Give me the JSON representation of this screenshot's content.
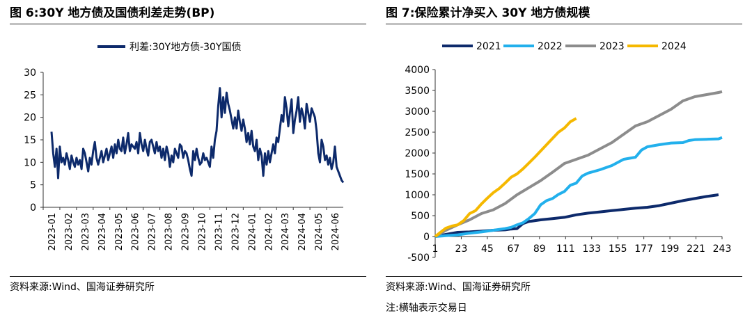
{
  "colors": {
    "navy": "#0d2a6b",
    "light_blue": "#22b0ec",
    "gray": "#8c8c8c",
    "yellow": "#f5b800",
    "rule": "#222222"
  },
  "left": {
    "title": "图 6:30Y 地方债及国债利差走势(BP)",
    "source": "资料来源:Wind、国海证券研究所"
  },
  "right": {
    "title": "图 7:保险累计净买入 30Y 地方债规模",
    "source": "资料来源:Wind、国海证券研究所",
    "note": "注:横轴表示交易日"
  },
  "chart_data": [
    {
      "type": "line",
      "title": "",
      "legend_position": "top-center",
      "categories": [
        "2023-01",
        "2023-02",
        "2023-03",
        "2023-04",
        "2023-05",
        "2023-06",
        "2023-07",
        "2023-08",
        "2023-09",
        "2023-10",
        "2023-11",
        "2023-12",
        "2024-01",
        "2024-02",
        "2024-03",
        "2024-04",
        "2024-05",
        "2024-06"
      ],
      "ylim": [
        0,
        30
      ],
      "yticks": [
        0,
        5,
        10,
        15,
        20,
        25,
        30
      ],
      "grid": false,
      "series": [
        {
          "name": "利差:30Y地方债-30Y国债",
          "color": "#0d2a6b",
          "x": [
            0,
            0.1,
            0.2,
            0.3,
            0.4,
            0.5,
            0.6,
            0.7,
            0.8,
            0.9,
            1.0,
            1.1,
            1.2,
            1.3,
            1.4,
            1.5,
            1.6,
            1.7,
            1.8,
            1.9,
            2.0,
            2.1,
            2.2,
            2.3,
            2.4,
            2.5,
            2.6,
            2.7,
            2.8,
            2.9,
            3.0,
            3.1,
            3.2,
            3.3,
            3.4,
            3.5,
            3.6,
            3.7,
            3.8,
            3.9,
            4.0,
            4.1,
            4.2,
            4.3,
            4.4,
            4.5,
            4.6,
            4.7,
            4.8,
            4.9,
            5.0,
            5.1,
            5.2,
            5.3,
            5.4,
            5.5,
            5.6,
            5.7,
            5.8,
            5.9,
            6.0,
            6.1,
            6.2,
            6.3,
            6.4,
            6.5,
            6.6,
            6.7,
            6.8,
            6.9,
            7.0,
            7.1,
            7.2,
            7.3,
            7.4,
            7.5,
            7.6,
            7.7,
            7.8,
            7.9,
            8.0,
            8.1,
            8.2,
            8.3,
            8.4,
            8.5,
            8.6,
            8.7,
            8.8,
            8.9,
            9.0,
            9.1,
            9.2,
            9.3,
            9.4,
            9.5,
            9.6,
            9.7,
            9.8,
            9.9,
            10.0,
            10.1,
            10.2,
            10.3,
            10.4,
            10.5,
            10.6,
            10.7,
            10.8,
            10.9,
            11.0,
            11.1,
            11.2,
            11.3,
            11.4,
            11.5,
            11.6,
            11.7,
            11.8,
            11.9,
            12.0,
            12.1,
            12.2,
            12.3,
            12.4,
            12.5,
            12.6,
            12.7,
            12.8,
            12.9,
            13.0,
            13.1,
            13.2,
            13.3,
            13.4,
            13.5,
            13.6,
            13.7,
            13.8,
            13.9,
            14.0,
            14.1,
            14.2,
            14.3,
            14.4,
            14.5,
            14.6,
            14.7,
            14.8,
            14.9,
            15.0,
            15.1,
            15.2,
            15.3,
            15.4,
            15.5,
            15.6,
            15.7,
            15.8,
            15.9,
            16.0,
            16.1,
            16.2,
            16.3,
            16.4,
            16.5,
            16.6,
            16.7,
            16.8,
            16.9,
            17.0,
            17.1,
            17.2,
            17.3,
            17.4,
            17.5
          ],
          "y": [
            16.8,
            12.0,
            9.0,
            13.0,
            6.5,
            13.5,
            10.0,
            11.0,
            9.5,
            12.0,
            10.5,
            8.5,
            11.5,
            10.0,
            9.0,
            11.0,
            9.5,
            10.5,
            8.5,
            13.0,
            12.0,
            10.0,
            8.0,
            11.0,
            9.5,
            12.5,
            14.5,
            11.0,
            9.5,
            11.0,
            12.5,
            10.0,
            11.5,
            13.0,
            10.5,
            12.0,
            13.5,
            11.0,
            14.0,
            12.0,
            15.0,
            13.0,
            12.5,
            15.5,
            12.0,
            14.0,
            16.5,
            12.5,
            14.0,
            13.5,
            13.0,
            14.5,
            12.0,
            16.5,
            14.0,
            12.5,
            15.0,
            13.0,
            11.5,
            14.5,
            15.0,
            13.5,
            12.0,
            14.5,
            12.5,
            13.5,
            11.0,
            13.0,
            10.5,
            13.5,
            12.0,
            9.0,
            11.5,
            10.0,
            13.0,
            12.0,
            11.0,
            14.0,
            13.5,
            11.0,
            12.5,
            12.0,
            10.5,
            8.5,
            7.0,
            12.5,
            10.5,
            13.0,
            11.0,
            9.5,
            10.0,
            12.0,
            10.5,
            11.0,
            10.0,
            9.0,
            13.5,
            11.0,
            15.0,
            17.0,
            22.5,
            26.5,
            20.0,
            24.5,
            21.0,
            25.5,
            23.0,
            21.5,
            19.5,
            17.5,
            20.0,
            17.5,
            21.5,
            19.0,
            17.0,
            19.5,
            17.5,
            14.5,
            16.5,
            14.0,
            17.0,
            13.5,
            12.5,
            15.0,
            10.5,
            13.0,
            11.5,
            7.0,
            12.0,
            9.5,
            12.5,
            10.0,
            12.0,
            14.0,
            12.0,
            15.5,
            14.5,
            17.5,
            20.5,
            19.0,
            24.5,
            22.0,
            18.0,
            21.0,
            24.0,
            16.5,
            19.5,
            21.5,
            24.5,
            19.0,
            22.0,
            20.5,
            17.5,
            23.0,
            21.0,
            19.0,
            22.0,
            21.0,
            20.0,
            17.0,
            12.0,
            10.0,
            15.0,
            13.5,
            10.5,
            11.5,
            9.5,
            11.0,
            8.5,
            10.0,
            13.5,
            9.0,
            8.0,
            7.0,
            6.0,
            5.5
          ]
        }
      ]
    },
    {
      "type": "line",
      "title": "",
      "legend_position": "top-center",
      "xlim": [
        1,
        243
      ],
      "xticks": [
        1,
        23,
        45,
        67,
        89,
        111,
        133,
        155,
        177,
        199,
        221,
        243
      ],
      "ylim": [
        -500,
        4000
      ],
      "yticks": [
        -500,
        0,
        500,
        1000,
        1500,
        2000,
        2500,
        3000,
        3500,
        4000
      ],
      "grid": false,
      "series": [
        {
          "name": "2021",
          "color": "#0d2a6b",
          "x": [
            1,
            10,
            20,
            30,
            40,
            50,
            60,
            65,
            70,
            75,
            80,
            90,
            100,
            110,
            120,
            130,
            140,
            150,
            160,
            170,
            180,
            190,
            200,
            210,
            220,
            230,
            240
          ],
          "y": [
            0,
            50,
            100,
            110,
            130,
            150,
            160,
            180,
            190,
            310,
            360,
            400,
            430,
            460,
            520,
            560,
            590,
            620,
            650,
            680,
            700,
            740,
            800,
            860,
            910,
            960,
            1000
          ]
        },
        {
          "name": "2022",
          "color": "#22b0ec",
          "x": [
            1,
            10,
            20,
            30,
            40,
            50,
            60,
            65,
            70,
            75,
            80,
            85,
            90,
            95,
            100,
            105,
            110,
            115,
            120,
            125,
            130,
            135,
            140,
            150,
            160,
            170,
            175,
            180,
            190,
            200,
            210,
            215,
            220,
            230,
            240,
            243
          ],
          "y": [
            0,
            20,
            40,
            80,
            110,
            150,
            190,
            220,
            280,
            330,
            430,
            550,
            760,
            860,
            910,
            1010,
            1080,
            1230,
            1280,
            1450,
            1520,
            1560,
            1600,
            1700,
            1850,
            1900,
            2070,
            2150,
            2200,
            2240,
            2250,
            2300,
            2320,
            2330,
            2340,
            2370
          ]
        },
        {
          "name": "2023",
          "color": "#8c8c8c",
          "x": [
            1,
            10,
            20,
            30,
            40,
            50,
            60,
            70,
            80,
            90,
            100,
            110,
            120,
            130,
            140,
            150,
            160,
            170,
            180,
            190,
            200,
            210,
            220,
            230,
            240,
            243
          ],
          "y": [
            0,
            150,
            280,
            400,
            550,
            640,
            790,
            1000,
            1170,
            1340,
            1540,
            1750,
            1850,
            1950,
            2100,
            2250,
            2450,
            2650,
            2750,
            2900,
            3050,
            3250,
            3350,
            3400,
            3450,
            3470
          ]
        },
        {
          "name": "2024",
          "color": "#f5b800",
          "x": [
            1,
            5,
            10,
            15,
            20,
            25,
            30,
            35,
            40,
            45,
            50,
            55,
            60,
            65,
            70,
            75,
            80,
            85,
            90,
            95,
            100,
            105,
            110,
            115,
            120
          ],
          "y": [
            0,
            90,
            200,
            250,
            280,
            380,
            550,
            620,
            780,
            920,
            1050,
            1150,
            1280,
            1420,
            1500,
            1620,
            1760,
            1900,
            2050,
            2200,
            2350,
            2500,
            2600,
            2750,
            2830
          ]
        }
      ]
    }
  ]
}
